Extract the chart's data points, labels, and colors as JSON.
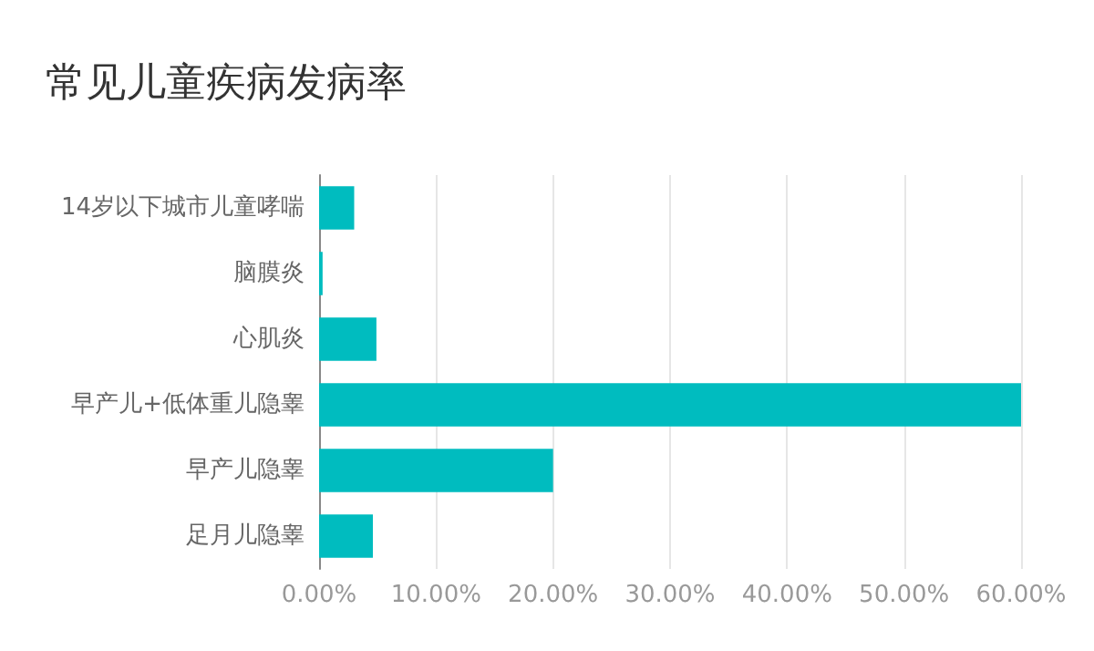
{
  "chart_data": {
    "type": "bar",
    "orientation": "horizontal",
    "title": "常见儿童疾病发病率",
    "categories": [
      "14岁以下城市儿童哮喘",
      "脑膜炎",
      "心肌炎",
      "早产儿+低体重儿隐睾",
      "早产儿隐睾",
      "足月儿隐睾"
    ],
    "values": [
      3.0,
      0.3,
      4.9,
      60,
      20,
      4.6
    ],
    "color": "#00bcbf",
    "xlim": [
      0,
      60
    ],
    "xticks": [
      {
        "value": 0,
        "label": "0.00%"
      },
      {
        "value": 10,
        "label": "10.00%"
      },
      {
        "value": 20,
        "label": "20.00%"
      },
      {
        "value": 30,
        "label": "30.00%"
      },
      {
        "value": 40,
        "label": "40.00%"
      },
      {
        "value": 50,
        "label": "50.00%"
      },
      {
        "value": 60,
        "label": "60.00%"
      }
    ],
    "grid": "x"
  }
}
